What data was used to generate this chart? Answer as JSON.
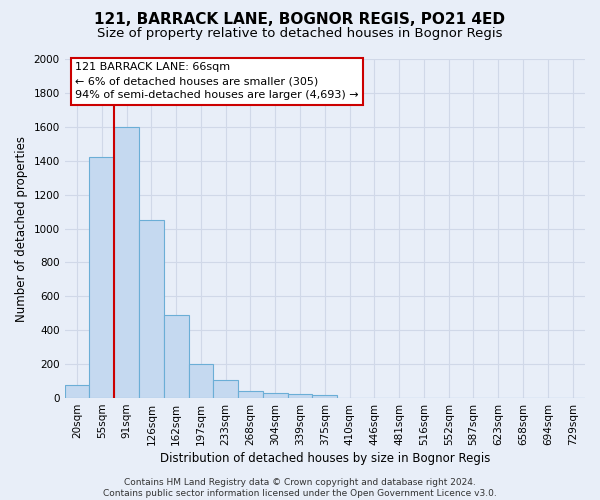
{
  "title1": "121, BARRACK LANE, BOGNOR REGIS, PO21 4ED",
  "title2": "Size of property relative to detached houses in Bognor Regis",
  "xlabel": "Distribution of detached houses by size in Bognor Regis",
  "ylabel": "Number of detached properties",
  "bar_labels": [
    "20sqm",
    "55sqm",
    "91sqm",
    "126sqm",
    "162sqm",
    "197sqm",
    "233sqm",
    "268sqm",
    "304sqm",
    "339sqm",
    "375sqm",
    "410sqm",
    "446sqm",
    "481sqm",
    "516sqm",
    "552sqm",
    "587sqm",
    "623sqm",
    "658sqm",
    "694sqm",
    "729sqm"
  ],
  "bar_values": [
    80,
    1420,
    1600,
    1050,
    490,
    200,
    105,
    40,
    30,
    22,
    18,
    0,
    0,
    0,
    0,
    0,
    0,
    0,
    0,
    0,
    0
  ],
  "bar_color": "#c5d9f0",
  "bar_edge_color": "#6baed6",
  "background_color": "#e8eef8",
  "grid_color": "#d0d8e8",
  "vline_x_index": 1,
  "vline_color": "#cc0000",
  "annotation_text": "121 BARRACK LANE: 66sqm\n← 6% of detached houses are smaller (305)\n94% of semi-detached houses are larger (4,693) →",
  "annotation_box_color": "#ffffff",
  "annotation_box_edge": "#cc0000",
  "ylim": [
    0,
    2000
  ],
  "yticks": [
    0,
    200,
    400,
    600,
    800,
    1000,
    1200,
    1400,
    1600,
    1800,
    2000
  ],
  "footer": "Contains HM Land Registry data © Crown copyright and database right 2024.\nContains public sector information licensed under the Open Government Licence v3.0.",
  "title1_fontsize": 11,
  "title2_fontsize": 9.5,
  "xlabel_fontsize": 8.5,
  "ylabel_fontsize": 8.5,
  "tick_fontsize": 7.5,
  "annotation_fontsize": 8,
  "footer_fontsize": 6.5
}
